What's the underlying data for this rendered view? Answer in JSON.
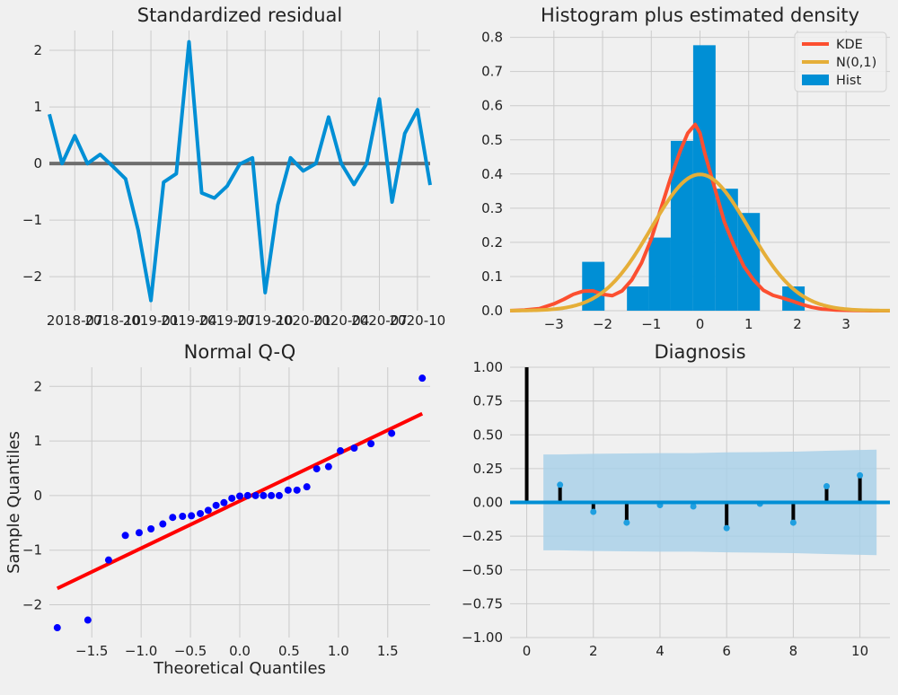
{
  "chart_data": [
    {
      "type": "line",
      "title": "Standardized residual",
      "xlabel": "",
      "ylabel": "",
      "x_range": [
        0,
        30
      ],
      "ylim": [
        -2.6,
        2.35
      ],
      "x_ticks": [
        {
          "label": "2018-07",
          "x": 2
        },
        {
          "label": "2018-10",
          "x": 5
        },
        {
          "label": "2019-01",
          "x": 8
        },
        {
          "label": "2019-04",
          "x": 11
        },
        {
          "label": "2019-07",
          "x": 14
        },
        {
          "label": "2019-10",
          "x": 17
        },
        {
          "label": "2020-01",
          "x": 20
        },
        {
          "label": "2020-04",
          "x": 23
        },
        {
          "label": "2020-07",
          "x": 26
        },
        {
          "label": "2020-10",
          "x": 29
        }
      ],
      "y_ticks": [
        -2,
        -1,
        0,
        1,
        2
      ],
      "y_tick_labels": [
        "−2",
        "−1",
        "0",
        "1",
        "2"
      ],
      "series": [
        {
          "color": "#008fd5",
          "values": [
            0.87,
            0.0,
            0.49,
            0.0,
            0.16,
            -0.05,
            -0.27,
            -1.18,
            -2.42,
            -0.33,
            -0.18,
            2.15,
            -0.52,
            -0.61,
            -0.4,
            -0.01,
            0.1,
            -2.28,
            -0.73,
            0.1,
            -0.13,
            0.0,
            0.82,
            0.0,
            -0.37,
            0.0,
            1.14,
            -0.68,
            0.53,
            0.95,
            -0.38
          ]
        }
      ],
      "hline": 0,
      "hline_color": "#6d6d6d",
      "grid": true
    },
    {
      "type": "histogram",
      "title": "Histogram plus estimated density",
      "xlabel": "",
      "ylabel": "",
      "xlim": [
        -3.9,
        3.9
      ],
      "ylim": [
        0,
        0.82
      ],
      "x_ticks": [
        -3,
        -2,
        -1,
        0,
        1,
        2,
        3
      ],
      "x_tick_labels": [
        "−3",
        "−2",
        "−1",
        "0",
        "1",
        "2",
        "3"
      ],
      "y_ticks": [
        0.0,
        0.1,
        0.2,
        0.3,
        0.4,
        0.5,
        0.6,
        0.7,
        0.8
      ],
      "y_tick_labels": [
        "0.0",
        "0.1",
        "0.2",
        "0.3",
        "0.4",
        "0.5",
        "0.6",
        "0.7",
        "0.8"
      ],
      "bins": [
        {
          "x0": -2.42,
          "x1": -1.96,
          "density": 0.143
        },
        {
          "x0": -1.5,
          "x1": -1.05,
          "density": 0.071
        },
        {
          "x0": -1.05,
          "x1": -0.6,
          "density": 0.214
        },
        {
          "x0": -0.6,
          "x1": -0.14,
          "density": 0.497
        },
        {
          "x0": -0.14,
          "x1": 0.32,
          "density": 0.777
        },
        {
          "x0": 0.32,
          "x1": 0.78,
          "density": 0.357
        },
        {
          "x0": 0.78,
          "x1": 1.23,
          "density": 0.286
        },
        {
          "x0": 1.69,
          "x1": 2.15,
          "density": 0.071
        }
      ],
      "kde": {
        "x": [
          -3.9,
          -3.6,
          -3.3,
          -3.0,
          -2.8,
          -2.6,
          -2.4,
          -2.2,
          -2.0,
          -1.8,
          -1.6,
          -1.4,
          -1.2,
          -1.0,
          -0.8,
          -0.6,
          -0.4,
          -0.25,
          -0.1,
          0.0,
          0.1,
          0.3,
          0.5,
          0.7,
          0.9,
          1.1,
          1.3,
          1.5,
          1.7,
          1.9,
          2.1,
          2.3,
          2.5,
          2.8,
          3.1,
          3.5,
          3.9
        ],
        "y": [
          0.0,
          0.002,
          0.006,
          0.02,
          0.033,
          0.048,
          0.057,
          0.058,
          0.048,
          0.044,
          0.058,
          0.09,
          0.14,
          0.21,
          0.3,
          0.39,
          0.47,
          0.52,
          0.545,
          0.52,
          0.46,
          0.36,
          0.26,
          0.19,
          0.13,
          0.09,
          0.06,
          0.045,
          0.037,
          0.028,
          0.018,
          0.01,
          0.005,
          0.002,
          0.001,
          0.0,
          0.0
        ]
      },
      "normal_mean": 0,
      "normal_sd": 1,
      "legend": [
        "KDE",
        "N(0,1)",
        "Hist"
      ],
      "legend_colors": [
        "#fc4f30",
        "#e5ae38",
        "#008fd5"
      ],
      "legend_position": "top-right",
      "grid": true
    },
    {
      "type": "scatter",
      "title": "Normal Q-Q",
      "xlabel": "Theoretical Quantiles",
      "ylabel": "Sample Quantiles",
      "xlim": [
        -1.93,
        1.93
      ],
      "ylim": [
        -2.6,
        2.35
      ],
      "x_ticks": [
        -1.5,
        -1.0,
        -0.5,
        0.0,
        0.5,
        1.0,
        1.5
      ],
      "x_tick_labels": [
        "−1.5",
        "−1.0",
        "−0.5",
        "0.0",
        "0.5",
        "1.0",
        "1.5"
      ],
      "y_ticks": [
        -2,
        -1,
        0,
        1,
        2
      ],
      "y_tick_labels": [
        "−2",
        "−1",
        "0",
        "1",
        "2"
      ],
      "points": {
        "x": [
          -1.85,
          -1.54,
          -1.33,
          -1.16,
          -1.02,
          -0.9,
          -0.78,
          -0.68,
          -0.58,
          -0.49,
          -0.4,
          -0.32,
          -0.24,
          -0.16,
          -0.08,
          0.0,
          0.08,
          0.16,
          0.24,
          0.32,
          0.4,
          0.49,
          0.58,
          0.68,
          0.78,
          0.9,
          1.02,
          1.16,
          1.33,
          1.54,
          1.85
        ],
        "y": [
          -2.42,
          -2.28,
          -1.18,
          -0.73,
          -0.68,
          -0.61,
          -0.52,
          -0.4,
          -0.38,
          -0.37,
          -0.33,
          -0.27,
          -0.18,
          -0.13,
          -0.05,
          -0.01,
          0.0,
          0.0,
          0.0,
          0.0,
          0.0,
          0.1,
          0.1,
          0.16,
          0.49,
          0.53,
          0.82,
          0.87,
          0.95,
          1.14,
          2.15
        ]
      },
      "point_color": "#0000ff",
      "reference_line": {
        "x": [
          -1.85,
          1.85
        ],
        "y": [
          -1.7,
          1.5
        ],
        "color": "#ff0000"
      },
      "grid": true
    },
    {
      "type": "bar",
      "title": "Diagnosis",
      "xlabel": "",
      "ylabel": "",
      "xlim": [
        -0.5,
        10.9
      ],
      "ylim": [
        -1.0,
        1.0
      ],
      "x_ticks": [
        0,
        2,
        4,
        6,
        8,
        10
      ],
      "x_tick_labels": [
        "0",
        "2",
        "4",
        "6",
        "8",
        "10"
      ],
      "y_ticks": [
        -1.0,
        -0.75,
        -0.5,
        -0.25,
        0.0,
        0.25,
        0.5,
        0.75,
        1.0
      ],
      "y_tick_labels": [
        "−1.00",
        "−0.75",
        "−0.50",
        "−0.25",
        "0.00",
        "0.25",
        "0.50",
        "0.75",
        "1.00"
      ],
      "lags": [
        0,
        1,
        2,
        3,
        4,
        5,
        6,
        7,
        8,
        9,
        10
      ],
      "values": [
        1.0,
        0.13,
        -0.07,
        -0.15,
        -0.02,
        -0.03,
        -0.19,
        -0.01,
        -0.15,
        0.12,
        0.2
      ],
      "confidence_band": {
        "x": [
          0.5,
          1,
          2,
          3,
          4,
          5,
          6,
          7,
          8,
          9,
          10,
          10.5
        ],
        "upper": [
          0.355,
          0.355,
          0.36,
          0.362,
          0.365,
          0.365,
          0.37,
          0.372,
          0.375,
          0.382,
          0.388,
          0.39
        ],
        "lower": [
          -0.355,
          -0.355,
          -0.36,
          -0.362,
          -0.365,
          -0.365,
          -0.37,
          -0.372,
          -0.375,
          -0.382,
          -0.388,
          -0.39
        ]
      },
      "bar_color": "#000000",
      "marker_color": "#1f9fe0",
      "band_color": "#a6cfe8",
      "hline": 0,
      "hline_color": "#008fd5",
      "grid": true
    }
  ]
}
